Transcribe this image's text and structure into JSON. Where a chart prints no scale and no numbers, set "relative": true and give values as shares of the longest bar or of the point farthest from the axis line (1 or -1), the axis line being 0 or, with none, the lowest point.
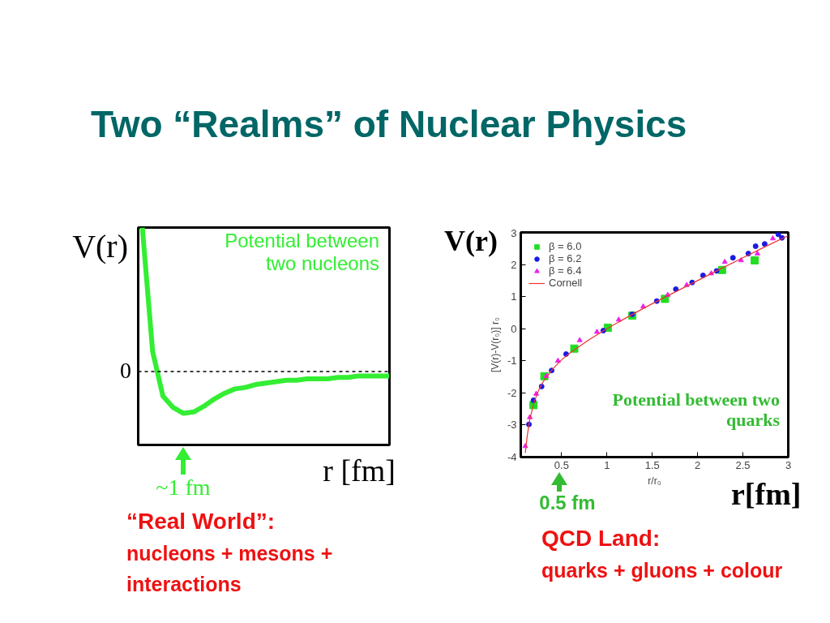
{
  "chart_data": [
    {
      "type": "line",
      "title": "Two “Realms” of Nuclear Physics",
      "xlabel": "r [fm]",
      "ylabel": "V(r)",
      "relative": true,
      "categories": [
        null,
        null,
        null,
        null,
        null,
        null,
        null,
        null,
        null,
        null,
        null,
        null,
        null,
        null,
        null,
        null,
        null,
        null,
        null,
        null,
        null,
        null,
        null,
        null,
        null
      ],
      "series": [
        {
          "name": "Potential between two nucleons",
          "color": "#33ee33",
          "values": [
            1,
            0.14,
            -0.17,
            -0.25,
            -0.29,
            -0.28,
            -0.24,
            -0.19,
            -0.15,
            -0.12,
            -0.11,
            -0.09,
            -0.08,
            -0.07,
            -0.06,
            -0.06,
            -0.05,
            -0.05,
            -0.05,
            -0.04,
            -0.04,
            -0.03,
            -0.03,
            -0.03,
            -0.03
          ]
        }
      ],
      "ref_lines": [
        {
          "axis": "y",
          "value": 0,
          "label": "0",
          "line_style": "dashed",
          "color": "#000000"
        }
      ],
      "annotations": [
        "~1 fm",
        "“Real World”:",
        "nucleons + mesons + interactions"
      ]
    },
    {
      "type": "scatter",
      "xlabel": "r/r₀",
      "ylabel": "[V(r)-V(r₀)] r₀",
      "xlim": [
        0.05,
        3
      ],
      "ylim": [
        -4,
        3
      ],
      "xticks": [
        0.5,
        1,
        1.5,
        2,
        2.5,
        3
      ],
      "yticks": [
        -4,
        -3,
        -2,
        -1,
        0,
        1,
        2,
        3
      ],
      "legend": "top left",
      "grid": false,
      "series": [
        {
          "name": "β = 6.0",
          "color": "#22dd22",
          "marker": "square",
          "x": [
            0.19,
            0.31,
            0.64,
            1.01,
            1.28,
            1.64,
            2.27,
            2.63
          ],
          "values": [
            -2.38,
            -1.48,
            -0.62,
            0.03,
            0.41,
            0.93,
            1.83,
            2.13
          ]
        },
        {
          "name": "β = 6.2",
          "color": "#1a1ae6",
          "marker": "circle",
          "x": [
            0.14,
            0.19,
            0.28,
            0.39,
            0.55,
            0.96,
            1.28,
            1.55,
            1.76,
            1.94,
            2.06,
            2.21,
            2.39,
            2.56,
            2.64,
            2.74,
            2.89,
            2.93
          ],
          "values": [
            -2.98,
            -2.23,
            -1.8,
            -1.3,
            -0.79,
            -0.06,
            0.45,
            0.86,
            1.23,
            1.44,
            1.66,
            1.8,
            2.21,
            2.34,
            2.57,
            2.64,
            2.94,
            2.83
          ]
        },
        {
          "name": "β = 6.4",
          "color": "#ee22ee",
          "marker": "triangle",
          "x": [
            0.1,
            0.15,
            0.22,
            0.33,
            0.46,
            0.7,
            0.89,
            1.13,
            1.4,
            1.67,
            1.88,
            2.15,
            2.3,
            2.48,
            2.66,
            2.83
          ],
          "values": [
            -3.66,
            -2.76,
            -2.03,
            -1.48,
            -1.0,
            -0.36,
            -0.1,
            0.28,
            0.69,
            1.05,
            1.36,
            1.72,
            2.08,
            2.13,
            2.34,
            2.81
          ]
        },
        {
          "name": "Cornell",
          "color": "#ee3333",
          "type": "line",
          "marker": "none",
          "x": [
            0.1,
            0.12,
            0.15,
            0.2,
            0.25,
            0.3,
            0.4,
            0.5,
            0.6,
            0.8,
            1,
            1.25,
            1.5,
            1.75,
            2,
            2.25,
            2.5,
            2.75,
            3
          ],
          "values": [
            -3.87,
            -3.36,
            -2.82,
            -2.26,
            -1.9,
            -1.64,
            -1.26,
            -0.97,
            -0.74,
            -0.35,
            0,
            0.4,
            0.78,
            1.14,
            1.5,
            1.86,
            2.21,
            2.56,
            2.9
          ]
        }
      ],
      "annotations": [
        "V(r)",
        "r[fm]",
        "Potential between two quarks",
        "0.5 fm",
        "QCD Land:",
        "quarks + gluons + colour"
      ]
    }
  ]
}
